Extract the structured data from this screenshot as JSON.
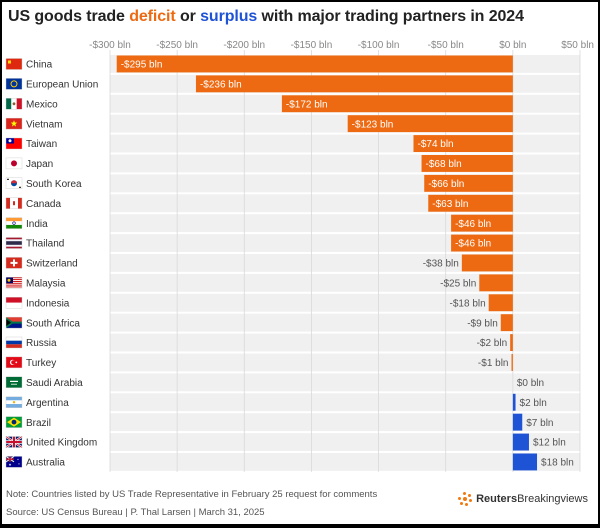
{
  "title": {
    "prefix": "US goods trade ",
    "deficit_word": "deficit",
    "middle": " or ",
    "surplus_word": "surplus",
    "suffix": " with major trading partners in 2024"
  },
  "footer": {
    "note": "Note: Countries listed by US Trade Representative in February 25 request for comments",
    "source": "Source: US Census Bureau | P. Thal Larsen | March 31, 2025"
  },
  "brand": {
    "name_bold": "Reuters",
    "name_light": "Breakingviews"
  },
  "colors": {
    "deficit": "#ee6a12",
    "surplus": "#1f53d6",
    "row_band": "#f0f0f0",
    "grid": "#d9d9d9",
    "axis_text": "#888888"
  },
  "chart_data": {
    "type": "bar",
    "orientation": "horizontal",
    "title": "US goods trade deficit or surplus with major trading partners in 2024",
    "xlabel": "",
    "ylabel": "",
    "xlim": [
      -300,
      50
    ],
    "ticks": [
      -300,
      -250,
      -200,
      -150,
      -100,
      -50,
      0,
      50
    ],
    "tick_labels": [
      "-$300 bln",
      "-$250 bln",
      "-$200 bln",
      "-$150 bln",
      "-$100 bln",
      "-$50 bln",
      "$0 bln",
      "$50 bln"
    ],
    "categories": [
      "China",
      "European Union",
      "Mexico",
      "Vietnam",
      "Taiwan",
      "Japan",
      "South Korea",
      "Canada",
      "India",
      "Thailand",
      "Switzerland",
      "Malaysia",
      "Indonesia",
      "South Africa",
      "Russia",
      "Turkey",
      "Saudi Arabia",
      "Argentina",
      "Brazil",
      "United Kingdom",
      "Australia"
    ],
    "values": [
      -295,
      -236,
      -172,
      -123,
      -74,
      -68,
      -66,
      -63,
      -46,
      -46,
      -38,
      -25,
      -18,
      -9,
      -2,
      -1,
      0,
      2,
      7,
      12,
      18
    ],
    "value_labels": [
      "-$295 bln",
      "-$236 bln",
      "-$172 bln",
      "-$123 bln",
      "-$74 bln",
      "-$68 bln",
      "-$66 bln",
      "-$63 bln",
      "-$46 bln",
      "-$46 bln",
      "-$38 bln",
      "-$25 bln",
      "-$18 bln",
      "-$9 bln",
      "-$2 bln",
      "-$1 bln",
      "$0 bln",
      "$2 bln",
      "$7 bln",
      "$12 bln",
      "$18 bln"
    ],
    "flag_icons": [
      "china-flag-icon",
      "eu-flag-icon",
      "mexico-flag-icon",
      "vietnam-flag-icon",
      "taiwan-flag-icon",
      "japan-flag-icon",
      "south-korea-flag-icon",
      "canada-flag-icon",
      "india-flag-icon",
      "thailand-flag-icon",
      "switzerland-flag-icon",
      "malaysia-flag-icon",
      "indonesia-flag-icon",
      "south-africa-flag-icon",
      "russia-flag-icon",
      "turkey-flag-icon",
      "saudi-arabia-flag-icon",
      "argentina-flag-icon",
      "brazil-flag-icon",
      "uk-flag-icon",
      "australia-flag-icon"
    ]
  }
}
